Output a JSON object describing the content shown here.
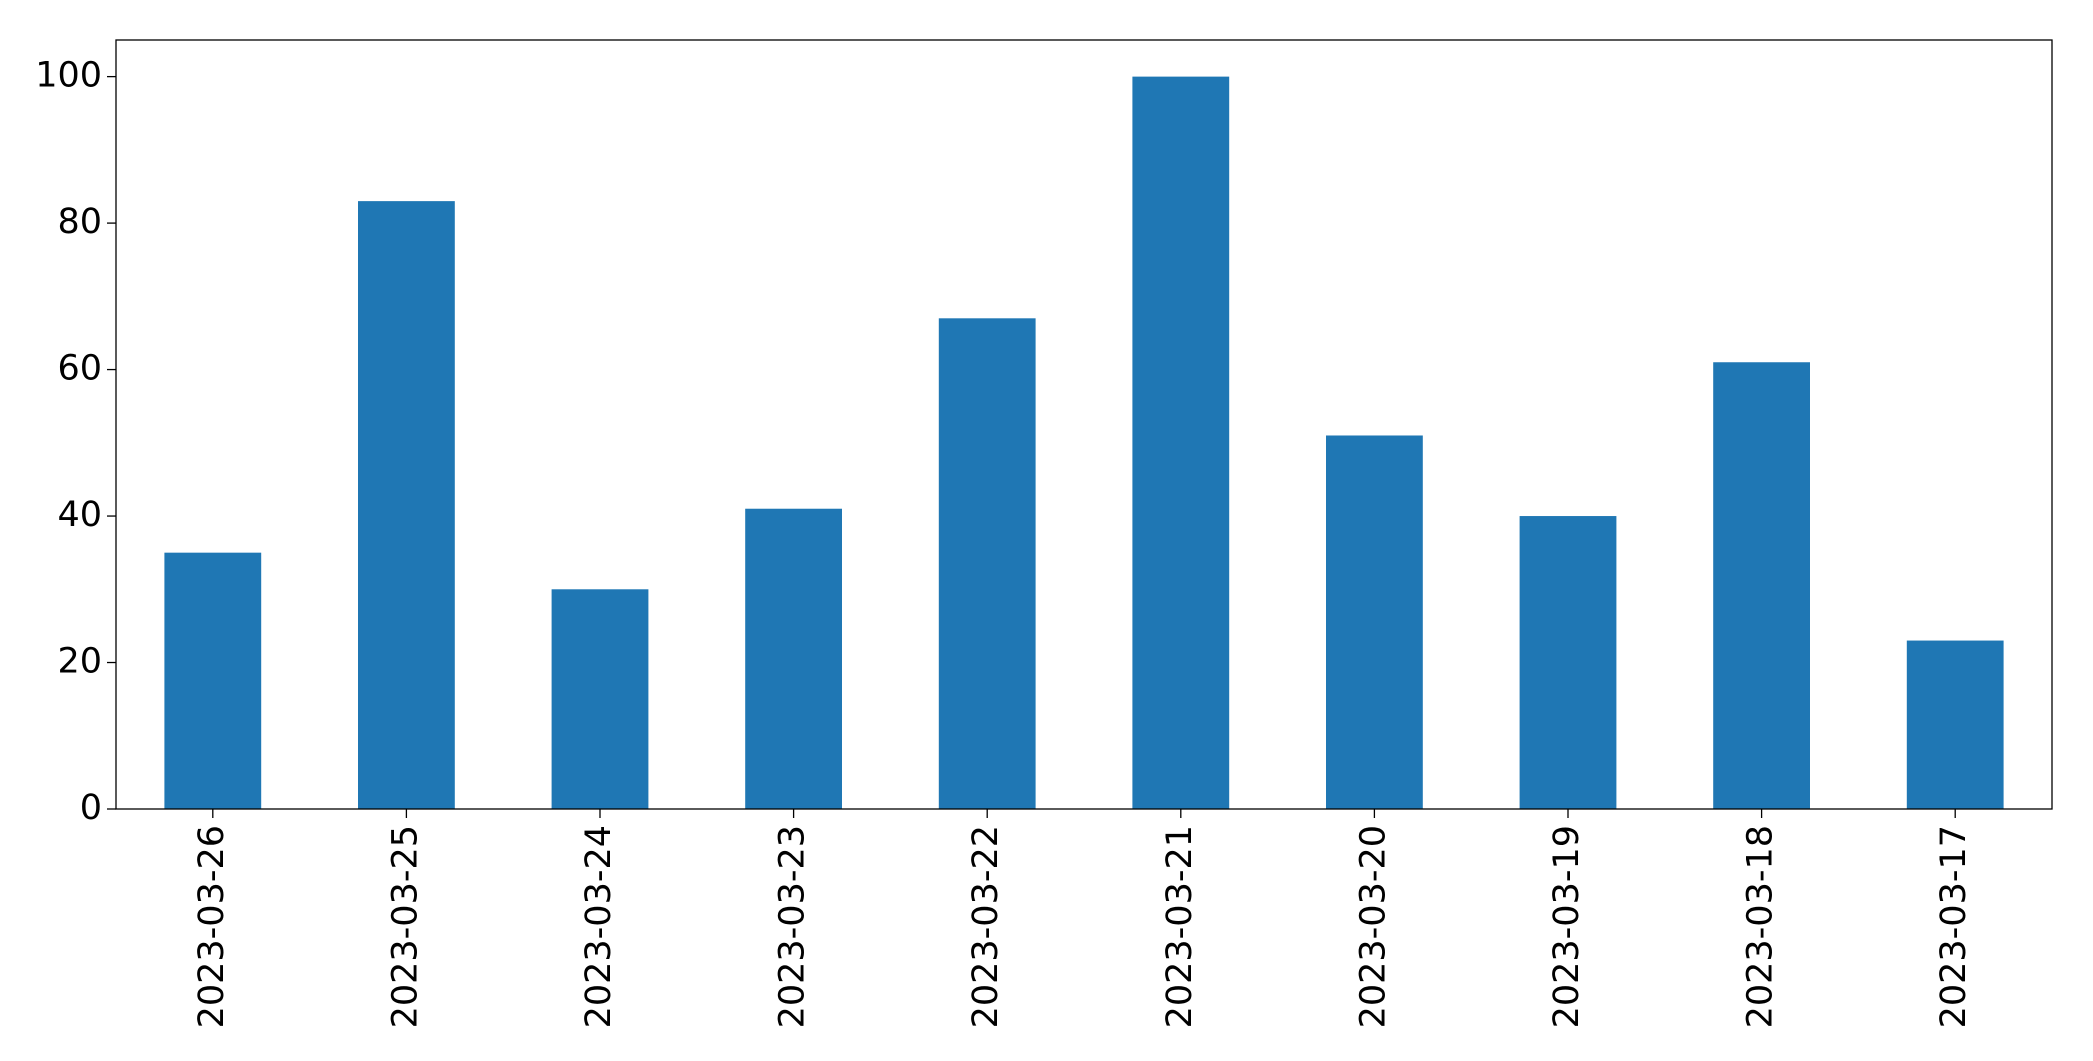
{
  "chart_data": {
    "type": "bar",
    "categories": [
      "2023-03-26",
      "2023-03-25",
      "2023-03-24",
      "2023-03-23",
      "2023-03-22",
      "2023-03-21",
      "2023-03-20",
      "2023-03-19",
      "2023-03-18",
      "2023-03-17"
    ],
    "values": [
      35,
      83,
      30,
      41,
      67,
      100,
      51,
      40,
      61,
      23
    ],
    "color": "#1f77b4",
    "ylim": [
      0,
      105
    ],
    "yticks": [
      0,
      20,
      40,
      60,
      80,
      100
    ],
    "grid": false
  }
}
